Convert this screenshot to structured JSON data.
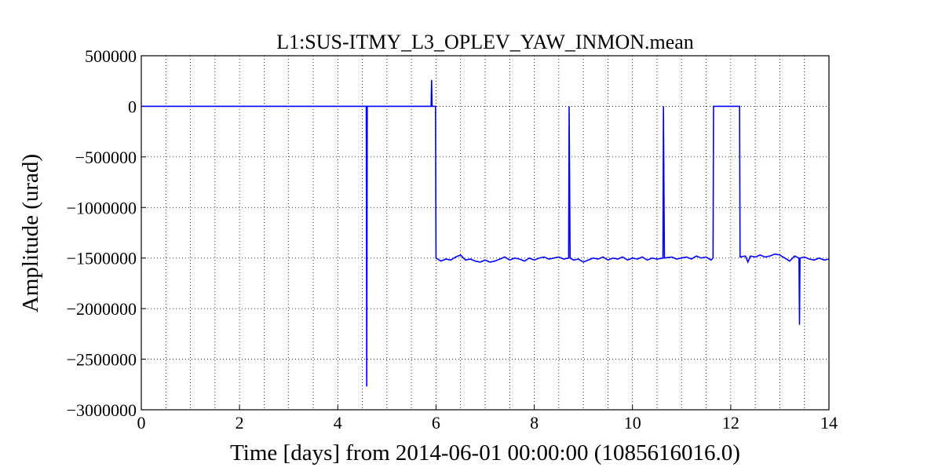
{
  "chart_data": {
    "type": "line",
    "title": "L1:SUS-ITMY_L3_OPLEV_YAW_INMON.mean",
    "xlabel": "Time [days] from 2014-06-01 00:00:00 (1085616016.0)",
    "ylabel": "Amplitude (urad)",
    "xlim": [
      0,
      14
    ],
    "ylim": [
      -3000000,
      500000
    ],
    "xticks": [
      0,
      2,
      4,
      6,
      8,
      10,
      12,
      14
    ],
    "xminorticks": [
      0.5,
      1,
      1.5,
      2.5,
      3,
      3.5,
      4.5,
      5,
      5.5,
      6.5,
      7,
      7.5,
      8.5,
      9,
      9.5,
      10.5,
      11,
      11.5,
      12.5,
      13,
      13.5
    ],
    "yticks": [
      500000,
      0,
      {
        "value": -500000,
        "label": "−500000"
      },
      {
        "value": -1000000,
        "label": "−1000000"
      },
      {
        "value": -1500000,
        "label": "−1500000"
      },
      {
        "value": -2000000,
        "label": "−2000000"
      },
      {
        "value": -2500000,
        "label": "−2500000"
      },
      {
        "value": -3000000,
        "label": "−3000000"
      }
    ],
    "grid": true,
    "series": [
      {
        "color": "#0000ff",
        "x": [
          0,
          4.58,
          4.59,
          4.6,
          5.9,
          5.91,
          5.92,
          5.99,
          6.0,
          6.1,
          6.2,
          6.3,
          6.4,
          6.5,
          6.6,
          6.7,
          6.8,
          6.9,
          7.0,
          7.1,
          7.2,
          7.3,
          7.4,
          7.5,
          7.6,
          7.7,
          7.8,
          7.9,
          8.0,
          8.1,
          8.2,
          8.3,
          8.4,
          8.5,
          8.6,
          8.7,
          8.71,
          8.73,
          8.8,
          8.9,
          9.0,
          9.1,
          9.2,
          9.3,
          9.4,
          9.5,
          9.6,
          9.7,
          9.8,
          9.9,
          10.0,
          10.1,
          10.2,
          10.3,
          10.4,
          10.5,
          10.62,
          10.63,
          10.65,
          10.8,
          10.9,
          11.0,
          11.1,
          11.2,
          11.3,
          11.4,
          11.5,
          11.6,
          11.64,
          11.65,
          12.18,
          12.19,
          12.3,
          12.35,
          12.4,
          12.5,
          12.6,
          12.7,
          12.8,
          12.9,
          13.0,
          13.1,
          13.2,
          13.3,
          13.39,
          13.4,
          13.41,
          13.5,
          13.6,
          13.7,
          13.8,
          13.9,
          14.0
        ],
        "values": [
          0,
          0,
          -2770000,
          0,
          0,
          260000,
          0,
          0,
          -1500000,
          -1530000,
          -1510000,
          -1520000,
          -1490000,
          -1470000,
          -1520000,
          -1510000,
          -1530000,
          -1540000,
          -1520000,
          -1540000,
          -1530000,
          -1510000,
          -1490000,
          -1520000,
          -1500000,
          -1510000,
          -1530000,
          -1500000,
          -1520000,
          -1500000,
          -1490000,
          -1510000,
          -1500000,
          -1490000,
          -1510000,
          -1500000,
          0,
          -1500000,
          -1520000,
          -1510000,
          -1540000,
          -1520000,
          -1500000,
          -1510000,
          -1490000,
          -1520000,
          -1500000,
          -1510000,
          -1490000,
          -1520000,
          -1500000,
          -1510000,
          -1490000,
          -1520000,
          -1500000,
          -1510000,
          -1500000,
          0,
          -1500000,
          -1490000,
          -1510000,
          -1500000,
          -1490000,
          -1510000,
          -1480000,
          -1500000,
          -1490000,
          -1520000,
          -1500000,
          0,
          0,
          -1490000,
          -1480000,
          -1540000,
          -1480000,
          -1490000,
          -1470000,
          -1490000,
          -1480000,
          -1460000,
          -1470000,
          -1500000,
          -1530000,
          -1480000,
          -1500000,
          -2160000,
          -1500000,
          -1490000,
          -1510000,
          -1520000,
          -1500000,
          -1520000,
          -1510000
        ]
      }
    ]
  }
}
